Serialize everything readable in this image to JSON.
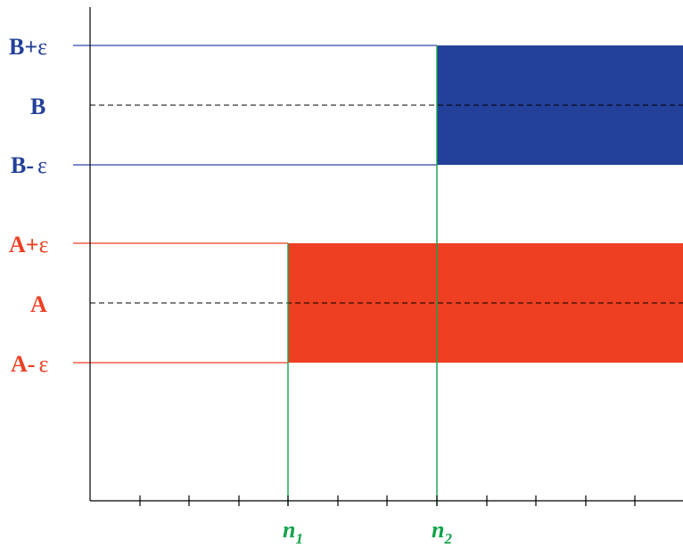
{
  "colors": {
    "axis": "#000000",
    "b_region": "#23409A",
    "b_line": "#3344AA",
    "a_region": "#EE3F22",
    "a_line": "#EE3F22",
    "n_line": "#12A34A",
    "dashed": "#000000"
  },
  "labels": {
    "b_plus": {
      "base": "B",
      "op": "+",
      "eps": "ε"
    },
    "b": {
      "base": "B"
    },
    "b_minus": {
      "base": "B",
      "op": "-",
      "eps": "ε"
    },
    "a_plus": {
      "base": "A",
      "op": "+",
      "eps": "ε"
    },
    "a": {
      "base": "A"
    },
    "a_minus": {
      "base": "A",
      "op": "-",
      "eps": "ε"
    },
    "n1": {
      "base": "n",
      "sub": "1"
    },
    "n2": {
      "base": "n",
      "sub": "2"
    }
  }
}
